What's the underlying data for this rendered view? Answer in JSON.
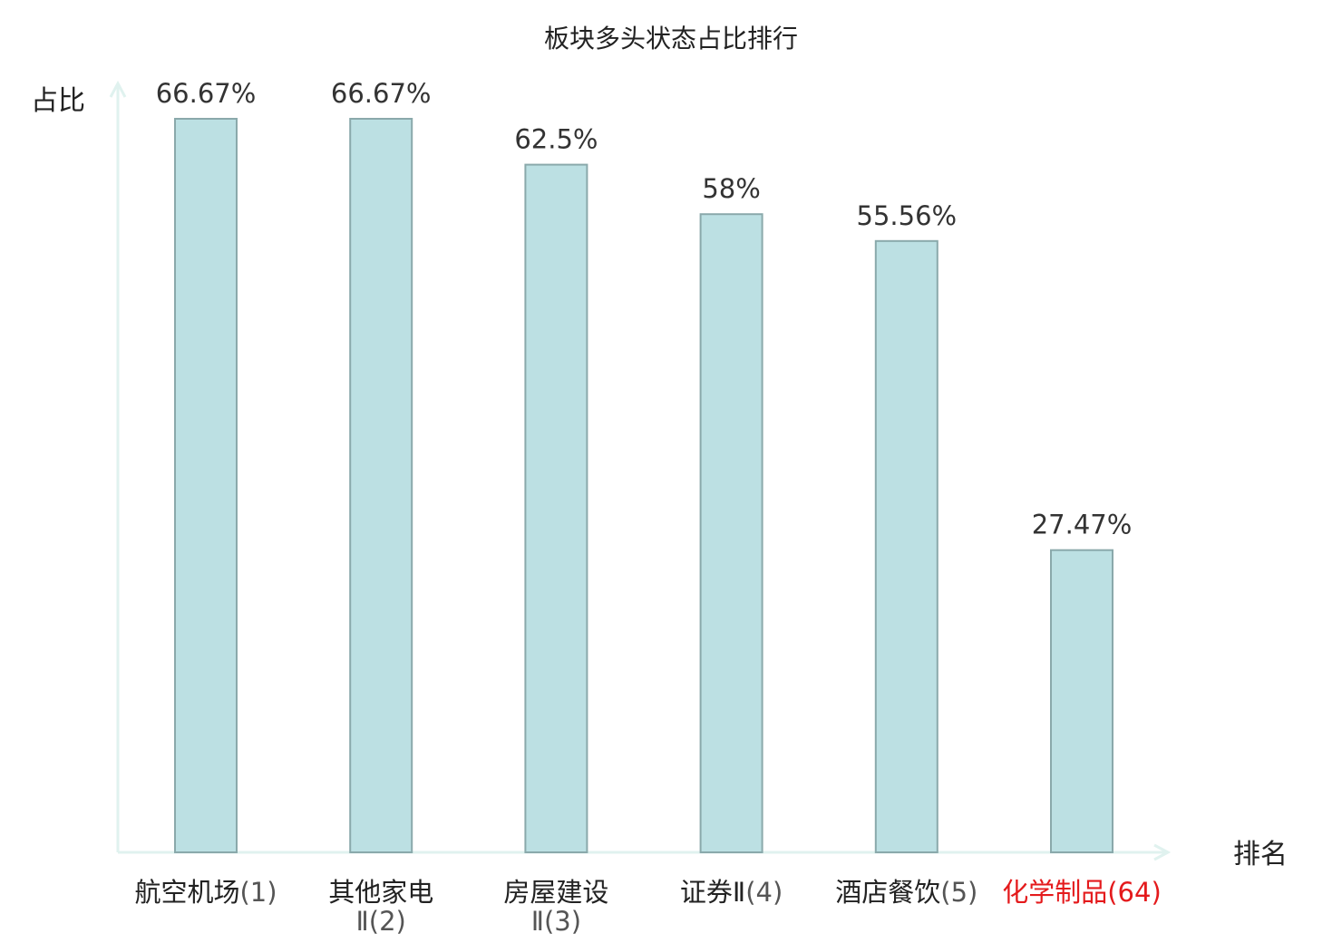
{
  "chart_data": {
    "type": "bar",
    "title": "板块多头状态占比排行",
    "ylabel": "占比",
    "xlabel": "排名",
    "ylim": [
      0,
      70
    ],
    "grid": false,
    "bar_color": "#bce0e3",
    "bar_edge_color": "#8aa9ab",
    "axis_color": "#e0f2ef",
    "highlight_color": "#e41a1c",
    "categories": [
      {
        "name": "航空机场",
        "rank": "(1)",
        "highlight": false
      },
      {
        "name": "其他家电",
        "name2": "Ⅱ(2)",
        "highlight": false
      },
      {
        "name": "房屋建设",
        "name2": "Ⅱ(3)",
        "highlight": false
      },
      {
        "name": "证券Ⅱ",
        "rank": "(4)",
        "highlight": false
      },
      {
        "name": "酒店餐饮",
        "rank": "(5)",
        "highlight": false
      },
      {
        "name": "化学制品",
        "rank": "(64)",
        "highlight": true
      }
    ],
    "values": [
      66.67,
      66.67,
      62.5,
      58,
      55.56,
      27.47
    ],
    "value_labels": [
      "66.67%",
      "66.67%",
      "62.5%",
      "58%",
      "55.56%",
      "27.47%"
    ]
  }
}
